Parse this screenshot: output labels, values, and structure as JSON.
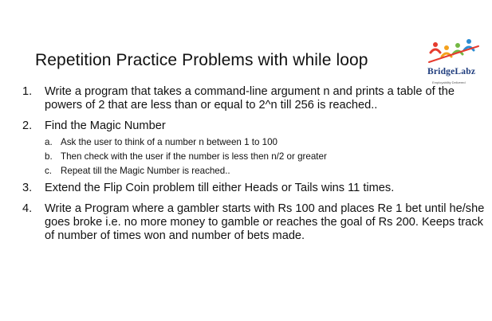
{
  "title": "Repetition Practice Problems with while loop",
  "logo": {
    "name": "BridgeLabz",
    "tagline": "Employability Delivered",
    "colors": [
      "#e63b2e",
      "#f4a11d",
      "#74b843",
      "#2a8cd3",
      "#1e3c7d"
    ]
  },
  "items": [
    {
      "number": "1.",
      "text": "Write a program that takes a command-line argument n and prints a table of the powers of 2 that are less than or equal to 2^n till 256 is reached.."
    },
    {
      "number": "2.",
      "text": "Find the Magic Number",
      "subitems": [
        {
          "letter": "a.",
          "text": "Ask the user to think of a number n between 1 to 100"
        },
        {
          "letter": "b.",
          "text": "Then check with the user if the number is less then n/2 or greater"
        },
        {
          "letter": "c.",
          "text": "Repeat till the Magic Number is reached.."
        }
      ]
    },
    {
      "number": "3.",
      "text": "Extend the Flip Coin problem till either Heads or Tails wins 11 times."
    },
    {
      "number": "4.",
      "text": "Write a Program where a gambler starts with Rs 100 and places Re 1 bet until he/she goes broke i.e. no more money to gamble or reaches the goal of Rs 200. Keeps track of number of times won and number of bets made."
    }
  ]
}
